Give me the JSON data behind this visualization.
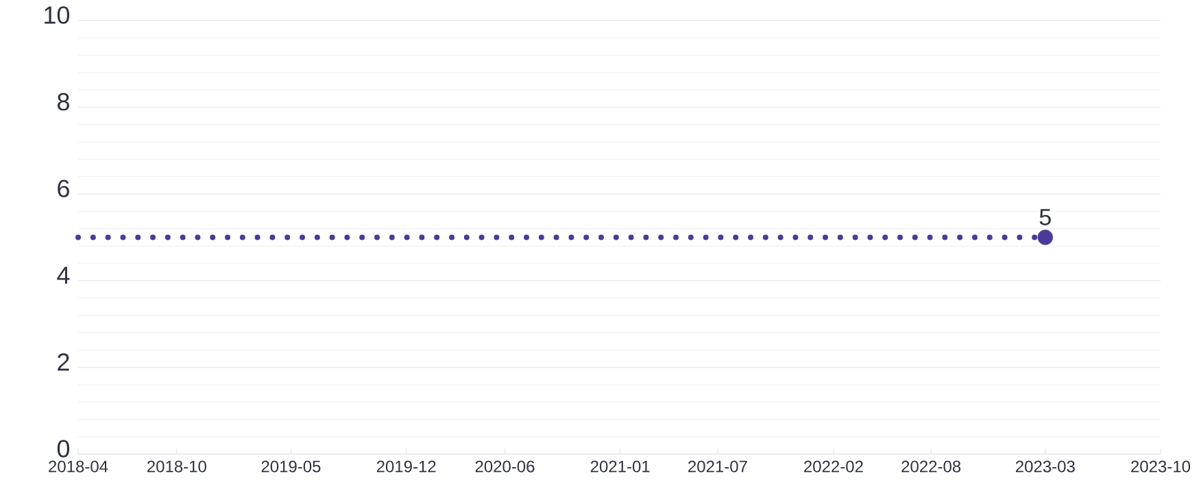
{
  "chart_data": {
    "type": "line",
    "xlim": [
      "2018-04",
      "2023-10"
    ],
    "xticks": [
      "2018-04",
      "2018-10",
      "2019-05",
      "2019-12",
      "2020-06",
      "2021-01",
      "2021-07",
      "2022-02",
      "2022-08",
      "2023-03",
      "2023-10"
    ],
    "ylim": [
      0,
      10
    ],
    "yticks": [
      0,
      2,
      4,
      6,
      8,
      10
    ],
    "grid": true,
    "series": [
      {
        "color": "#4b3a9a",
        "line_style": "dotted",
        "marker": "none",
        "x": [
          "2018-04",
          "2023-03"
        ],
        "values": [
          5,
          5
        ]
      },
      {
        "type": "scatter",
        "color": "#4b3a9a",
        "marker": "circle",
        "x": [
          "2023-03"
        ],
        "values": [
          5
        ],
        "value_labels": [
          "5"
        ]
      }
    ]
  }
}
